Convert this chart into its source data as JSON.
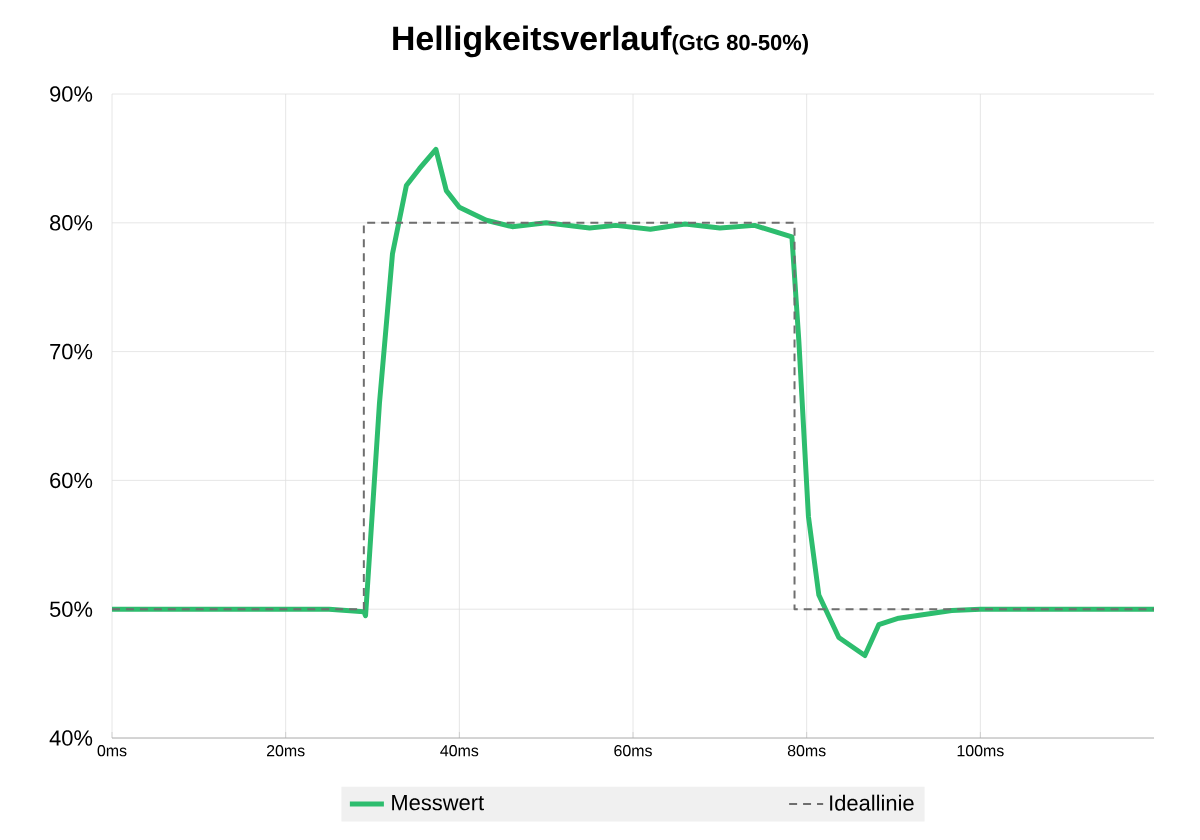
{
  "chart_data": {
    "type": "line",
    "title": "Helligkeitsverlauf",
    "subtitle": "(GtG 80-50%)",
    "series": [
      {
        "name": "Messwert",
        "color": "#2dbd6e",
        "line_style": "solid",
        "x": [
          0,
          5,
          10,
          15,
          20,
          25,
          29,
          29.2,
          30.8,
          32.3,
          33.9,
          35.4,
          37.3,
          38.5,
          40,
          43.1,
          46.1,
          50,
          55,
          58,
          62,
          66,
          70,
          74,
          78.3,
          79.1,
          80.2,
          81.4,
          83.7,
          86.7,
          88.3,
          90.6,
          96.7,
          100,
          105,
          110,
          115,
          120
        ],
        "values": [
          50,
          50,
          50,
          50,
          50,
          50,
          49.8,
          49.5,
          66,
          77.6,
          82.9,
          84.2,
          85.7,
          82.5,
          81.2,
          80.2,
          79.7,
          80,
          79.6,
          79.8,
          79.5,
          79.9,
          79.6,
          79.8,
          78.9,
          70.8,
          57.2,
          51.1,
          47.8,
          46.4,
          48.8,
          49.3,
          49.9,
          50,
          50,
          50,
          50,
          50
        ]
      },
      {
        "name": "Ideallinie",
        "color": "#6e6e6e",
        "line_style": "dashed",
        "x": [
          0,
          29,
          29,
          78.6,
          78.6,
          120
        ],
        "values": [
          50,
          50,
          80,
          80,
          50,
          50
        ]
      }
    ],
    "xlim": [
      0,
      120
    ],
    "ylim": [
      40,
      90
    ],
    "xticks": [
      {
        "value": 0,
        "label": "0ms"
      },
      {
        "value": 20,
        "label": "20ms"
      },
      {
        "value": 40,
        "label": "40ms"
      },
      {
        "value": 60,
        "label": "60ms"
      },
      {
        "value": 80,
        "label": "80ms"
      },
      {
        "value": 100,
        "label": "100ms"
      }
    ],
    "yticks": [
      {
        "value": 40,
        "label": "40%"
      },
      {
        "value": 50,
        "label": "50%"
      },
      {
        "value": 60,
        "label": "60%"
      },
      {
        "value": 70,
        "label": "70%"
      },
      {
        "value": 80,
        "label": "80%"
      },
      {
        "value": 90,
        "label": "90%"
      }
    ],
    "grid": true,
    "legend": "bottom",
    "marker": "none"
  }
}
